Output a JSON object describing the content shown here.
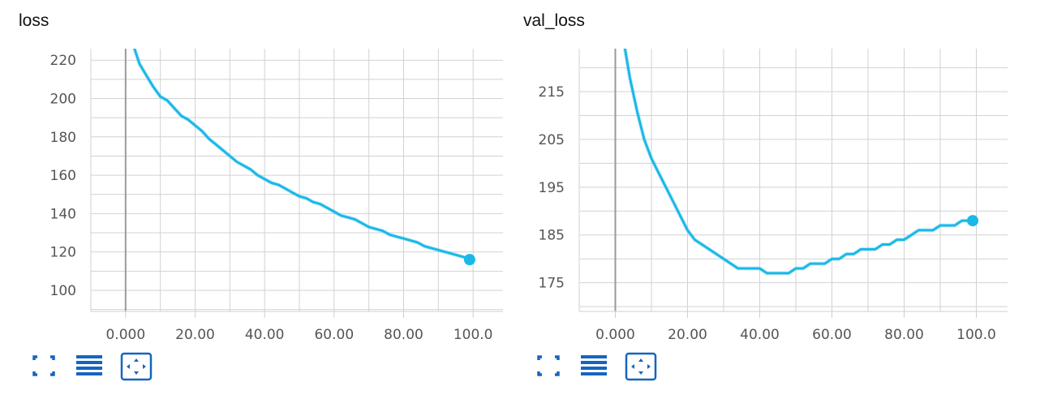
{
  "chart_data": [
    {
      "type": "line",
      "title": "loss",
      "xlabel": "",
      "ylabel": "",
      "xlim": [
        -10,
        110
      ],
      "ylim": [
        89,
        226
      ],
      "xticks": [
        0,
        20,
        40,
        60,
        80,
        100
      ],
      "xtick_labels": [
        "0.000",
        "20.00",
        "40.00",
        "60.00",
        "80.00",
        "100.0"
      ],
      "yticks": [
        100,
        120,
        140,
        160,
        180,
        200,
        220
      ],
      "ytick_labels": [
        "100",
        "120",
        "140",
        "160",
        "180",
        "200",
        "220"
      ],
      "grid": true,
      "series": [
        {
          "color": "#1ab8e8",
          "x": [
            2,
            4,
            6,
            8,
            10,
            12,
            14,
            16,
            18,
            20,
            22,
            24,
            26,
            28,
            30,
            32,
            34,
            36,
            38,
            40,
            42,
            44,
            46,
            48,
            50,
            52,
            54,
            56,
            58,
            60,
            62,
            64,
            66,
            68,
            70,
            72,
            74,
            76,
            78,
            80,
            82,
            84,
            86,
            88,
            90,
            92,
            94,
            96,
            98,
            99
          ],
          "y": [
            229,
            218,
            212,
            206,
            201,
            199,
            195,
            191,
            189,
            186,
            183,
            179,
            176,
            173,
            170,
            167,
            165,
            163,
            160,
            158,
            156,
            155,
            153,
            151,
            149,
            148,
            146,
            145,
            143,
            141,
            139,
            138,
            137,
            135,
            133,
            132,
            131,
            129,
            128,
            127,
            126,
            125,
            123,
            122,
            121,
            120,
            119,
            118,
            117,
            116
          ]
        }
      ]
    },
    {
      "type": "line",
      "title": "val_loss",
      "xlabel": "",
      "ylabel": "",
      "xlim": [
        -10,
        110
      ],
      "ylim": [
        169,
        224
      ],
      "xticks": [
        0,
        20,
        40,
        60,
        80,
        100
      ],
      "xtick_labels": [
        "0.000",
        "20.00",
        "40.00",
        "60.00",
        "80.00",
        "100.0"
      ],
      "yticks": [
        175,
        185,
        195,
        205,
        215
      ],
      "ytick_labels": [
        "175",
        "185",
        "195",
        "205",
        "215"
      ],
      "grid": true,
      "series": [
        {
          "color": "#1ab8e8",
          "x": [
            2,
            4,
            6,
            8,
            10,
            12,
            14,
            16,
            18,
            20,
            22,
            24,
            26,
            28,
            30,
            32,
            34,
            36,
            38,
            40,
            42,
            44,
            46,
            48,
            50,
            52,
            54,
            56,
            58,
            60,
            62,
            64,
            66,
            68,
            70,
            72,
            74,
            76,
            78,
            80,
            82,
            84,
            86,
            88,
            90,
            92,
            94,
            96,
            98,
            99
          ],
          "y": [
            227,
            218,
            211,
            205,
            201,
            198,
            195,
            192,
            189,
            186,
            184,
            183,
            182,
            181,
            180,
            179,
            178,
            178,
            178,
            178,
            177,
            177,
            177,
            177,
            178,
            178,
            179,
            179,
            179,
            180,
            180,
            181,
            181,
            182,
            182,
            182,
            183,
            183,
            184,
            184,
            185,
            186,
            186,
            186,
            187,
            187,
            187,
            188,
            188,
            188
          ]
        }
      ]
    }
  ],
  "toolbar": {
    "icons": [
      "expand-icon",
      "list-icon",
      "fit-domain-icon"
    ],
    "accent": "#1565c0"
  }
}
